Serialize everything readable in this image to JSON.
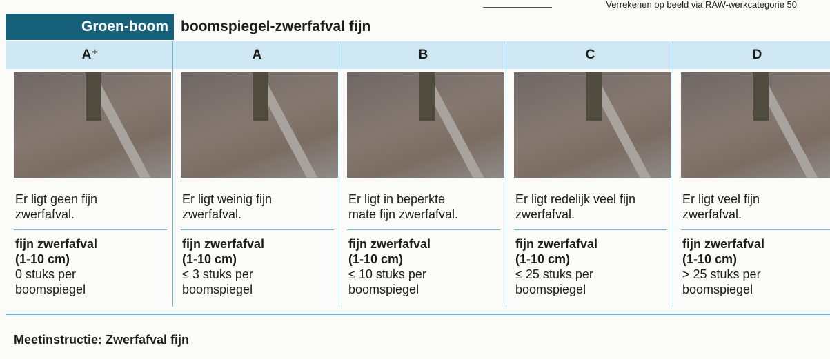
{
  "header": {
    "note": "Verrekenen op beeld via RAW-werkcategorie 50",
    "category": "Groen-boom",
    "title": "boomspiegel-zwerfafval fijn"
  },
  "columns": [
    {
      "grade": "A⁺",
      "description": [
        "Er ligt geen fijn",
        "zwerfafval."
      ],
      "criterion": [
        "fijn zwerfafval",
        "(1-10 cm)"
      ],
      "count": [
        "0 stuks per",
        "boomspiegel"
      ]
    },
    {
      "grade": "A",
      "description": [
        "Er ligt weinig fijn",
        "zwerfafval."
      ],
      "criterion": [
        "fijn zwerfafval",
        "(1-10 cm)"
      ],
      "count": [
        "≤ 3 stuks per",
        "boomspiegel"
      ]
    },
    {
      "grade": "B",
      "description": [
        "Er ligt in beperkte",
        "mate fijn zwerfafval."
      ],
      "criterion": [
        "fijn zwerfafval",
        "(1-10 cm)"
      ],
      "count": [
        "≤ 10 stuks per",
        "boomspiegel"
      ]
    },
    {
      "grade": "C",
      "description": [
        "Er ligt redelijk veel fijn",
        "zwerfafval."
      ],
      "criterion": [
        "fijn zwerfafval",
        "(1-10 cm)"
      ],
      "count": [
        "≤ 25 stuks per",
        "boomspiegel"
      ]
    },
    {
      "grade": "D",
      "description": [
        "Er ligt veel fijn",
        "zwerfafval."
      ],
      "criterion": [
        "fijn zwerfafval",
        "(1-10 cm)"
      ],
      "count": [
        "> 25 stuks per",
        "boomspiegel"
      ]
    }
  ],
  "footer": {
    "instruction": "Meetinstructie: Zwerfafval fijn"
  }
}
